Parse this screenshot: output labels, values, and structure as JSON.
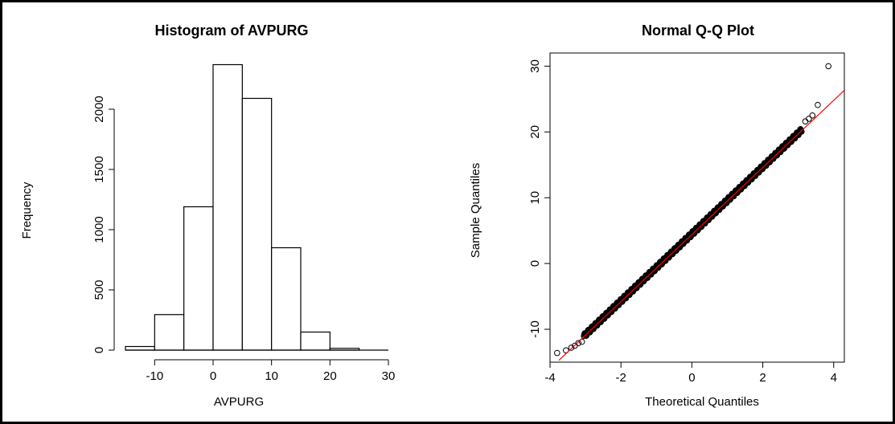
{
  "chart_data": [
    {
      "type": "bar",
      "title": "Histogram of AVPURG",
      "xlabel": "AVPURG",
      "ylabel": "Frequency",
      "bins": [
        {
          "from": -15,
          "to": -10,
          "count": 30
        },
        {
          "from": -10,
          "to": -5,
          "count": 295
        },
        {
          "from": -5,
          "to": 0,
          "count": 1190
        },
        {
          "from": 0,
          "to": 5,
          "count": 2370
        },
        {
          "from": 5,
          "to": 10,
          "count": 2090
        },
        {
          "from": 10,
          "to": 15,
          "count": 850
        },
        {
          "from": 15,
          "to": 20,
          "count": 150
        },
        {
          "from": 20,
          "to": 25,
          "count": 15
        },
        {
          "from": 25,
          "to": 30,
          "count": 0
        }
      ],
      "xticks": [
        -10,
        0,
        10,
        20,
        30
      ],
      "xtick_labels": [
        "-10",
        "0",
        "10",
        "20",
        "30"
      ],
      "yticks": [
        0,
        500,
        1000,
        1500,
        2000
      ],
      "ytick_labels": [
        "0",
        "500",
        "1000",
        "1500",
        "2000"
      ],
      "xlim": [
        -15,
        30
      ],
      "ylim": [
        0,
        2400
      ]
    },
    {
      "type": "scatter",
      "title": "Normal Q-Q Plot",
      "xlabel": "Theoretical Quantiles",
      "ylabel": "Sample Quantiles",
      "xlim": [
        -4,
        4.3
      ],
      "ylim": [
        -15,
        32
      ],
      "xticks": [
        -4,
        -2,
        0,
        2,
        4
      ],
      "xtick_labels": [
        "-4",
        "-2",
        "0",
        "2",
        "4"
      ],
      "yticks": [
        -10,
        0,
        10,
        20,
        30
      ],
      "ytick_labels": [
        "-10",
        "0",
        "10",
        "20",
        "30"
      ],
      "reference_line": {
        "intercept": 4.4,
        "slope": 5.1,
        "color": "#ff0000"
      },
      "point_color": "#000000",
      "outliers": [
        {
          "x": 3.85,
          "y": 30.0
        },
        {
          "x": 3.55,
          "y": 24.1
        },
        {
          "x": 3.4,
          "y": 22.5
        },
        {
          "x": 3.3,
          "y": 22.0
        },
        {
          "x": 3.2,
          "y": 21.6
        },
        {
          "x": -3.8,
          "y": -13.6
        },
        {
          "x": -3.55,
          "y": -13.2
        },
        {
          "x": -3.4,
          "y": -12.8
        },
        {
          "x": -3.3,
          "y": -12.5
        },
        {
          "x": -3.2,
          "y": -12.1
        },
        {
          "x": -3.1,
          "y": -11.9
        }
      ],
      "body_range": {
        "x_from": -3.05,
        "x_to": 3.1,
        "slope": 5.1,
        "intercept": 4.5
      }
    }
  ]
}
